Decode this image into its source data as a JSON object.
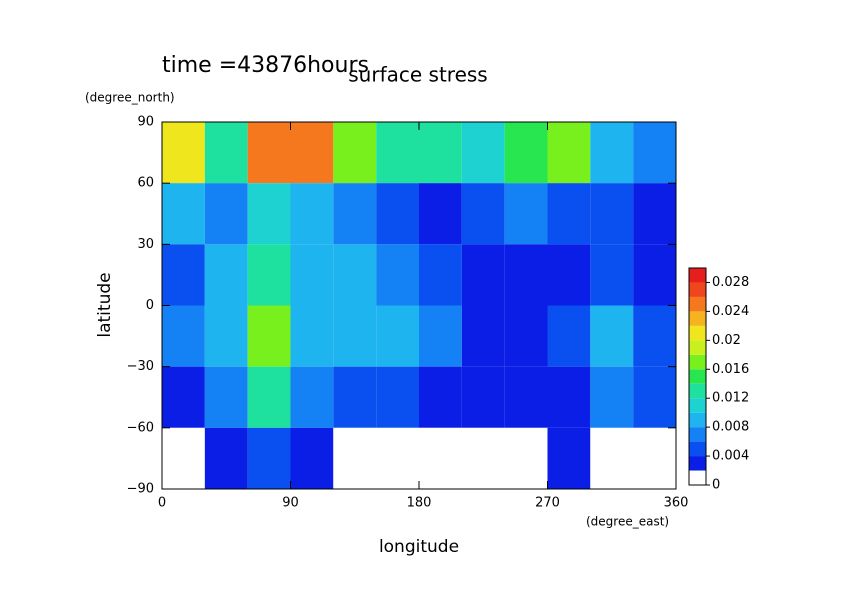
{
  "chart_data": {
    "type": "contour",
    "time_label": "time =43876hours",
    "title": "surface stress",
    "y_unit": "(degree_north)",
    "y_label": "latitude",
    "x_unit": "(degree_east)",
    "x_label": "longitude",
    "xlim": [
      0,
      360
    ],
    "ylim": [
      -90,
      90
    ],
    "xticks": [
      0,
      90,
      180,
      270,
      360
    ],
    "yticks": [
      {
        "value": -90,
        "label": "−90"
      },
      {
        "value": -60,
        "label": "−60"
      },
      {
        "value": -30,
        "label": "−30"
      },
      0,
      30,
      60,
      90
    ],
    "x": [
      0,
      30,
      60,
      90,
      120,
      150,
      180,
      210,
      240,
      270,
      300,
      330,
      360
    ],
    "y": [
      90,
      60,
      30,
      0,
      -30,
      -60,
      -90
    ],
    "values": [
      [
        0.02,
        0.012,
        0.024,
        0.024,
        0.016,
        0.012,
        0.012,
        0.01,
        0.014,
        0.016,
        0.008,
        0.006
      ],
      [
        0.008,
        0.006,
        0.01,
        0.008,
        0.006,
        0.004,
        0.002,
        0.004,
        0.006,
        0.004,
        0.004,
        0.002
      ],
      [
        0.004,
        0.008,
        0.012,
        0.008,
        0.008,
        0.006,
        0.004,
        0.002,
        0.002,
        0.002,
        0.004,
        0.002
      ],
      [
        0.006,
        0.008,
        0.016,
        0.008,
        0.008,
        0.008,
        0.006,
        0.002,
        0.002,
        0.004,
        0.008,
        0.004
      ],
      [
        0.002,
        0.006,
        0.012,
        0.006,
        0.004,
        0.004,
        0.002,
        0.002,
        0.002,
        0.002,
        0.006,
        0.004
      ],
      [
        0,
        0.002,
        0.004,
        0.002,
        0,
        0,
        0,
        0,
        0,
        0.002,
        0,
        0
      ]
    ],
    "levels": [
      0,
      0.002,
      0.004,
      0.006,
      0.008,
      0.01,
      0.012,
      0.014,
      0.016,
      0.018,
      0.02,
      0.022,
      0.024,
      0.026,
      0.028,
      0.03
    ],
    "colors": [
      "#ffffff",
      "#0a1ee6",
      "#0a50f0",
      "#1482f5",
      "#1eb4f0",
      "#1ed2d2",
      "#1ee1a0",
      "#28e650",
      "#78f01e",
      "#c8f01e",
      "#f0e61e",
      "#f5b41e",
      "#f5781e",
      "#f0461e",
      "#e61e1e"
    ],
    "cbticks": [
      0,
      0.004,
      0.008,
      0.012,
      0.016,
      0.02,
      0.024,
      0.028
    ]
  }
}
